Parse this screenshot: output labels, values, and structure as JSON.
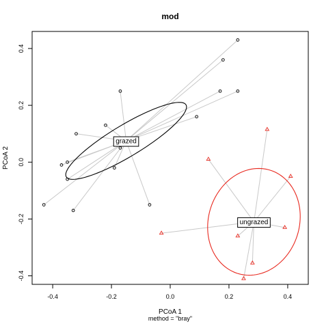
{
  "chart_data": {
    "type": "scatter",
    "title": "mod",
    "xlabel": "PCoA 1",
    "ylabel": "PCoA 2",
    "subtitle": "method = \"bray\"",
    "xlim": [
      -0.47,
      0.47
    ],
    "ylim": [
      -0.43,
      0.46
    ],
    "x_ticks": [
      "-0.4",
      "-0.2",
      "0.0",
      "0.2",
      "0.4"
    ],
    "y_ticks": [
      "-0.4",
      "-0.2",
      "0.0",
      "0.2",
      "0.4"
    ],
    "grid": false,
    "groups": [
      {
        "name": "grazed",
        "color": "#000000",
        "marker": "circle",
        "centroid": [
          -0.15,
          0.075
        ],
        "ellipse": {
          "center": [
            -0.15,
            0.075
          ],
          "semi_major": 0.24,
          "semi_minor": 0.055,
          "angle_deg": 32
        },
        "points": [
          [
            0.23,
            0.43
          ],
          [
            0.18,
            0.36
          ],
          [
            0.23,
            0.25
          ],
          [
            0.17,
            0.25
          ],
          [
            0.09,
            0.16
          ],
          [
            -0.17,
            0.25
          ],
          [
            -0.22,
            0.13
          ],
          [
            -0.32,
            0.1
          ],
          [
            -0.17,
            0.05
          ],
          [
            -0.35,
            0.0
          ],
          [
            -0.37,
            -0.01
          ],
          [
            -0.19,
            -0.02
          ],
          [
            -0.35,
            -0.06
          ],
          [
            -0.43,
            -0.15
          ],
          [
            -0.33,
            -0.17
          ],
          [
            -0.07,
            -0.15
          ]
        ]
      },
      {
        "name": "ungrazed",
        "color": "#e8281e",
        "marker": "triangle",
        "centroid": [
          0.285,
          -0.21
        ],
        "ellipse": {
          "center": [
            0.285,
            -0.21
          ],
          "semi_major": 0.19,
          "semi_minor": 0.155,
          "angle_deg": 75
        },
        "points": [
          [
            0.33,
            0.115
          ],
          [
            0.13,
            0.01
          ],
          [
            0.41,
            -0.05
          ],
          [
            0.39,
            -0.23
          ],
          [
            -0.03,
            -0.25
          ],
          [
            0.23,
            -0.26
          ],
          [
            0.28,
            -0.355
          ],
          [
            0.25,
            -0.41
          ]
        ]
      }
    ]
  }
}
